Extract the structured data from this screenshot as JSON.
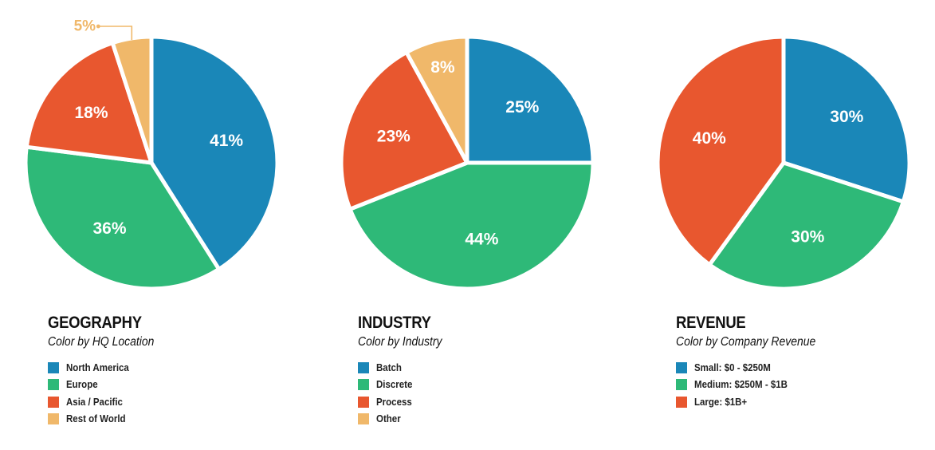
{
  "colors": {
    "blue": "#1a87b8",
    "green": "#2eb978",
    "red": "#e8572f",
    "orange": "#f0b86a"
  },
  "chart_data": [
    {
      "type": "pie",
      "title": "GEOGRAPHY",
      "subtitle": "Color by HQ Location",
      "slices": [
        {
          "name": "North America",
          "value": 41,
          "label": "41%",
          "color": "#1a87b8"
        },
        {
          "name": "Europe",
          "value": 36,
          "label": "36%",
          "color": "#2eb978"
        },
        {
          "name": "Asia / Pacific",
          "value": 18,
          "label": "18%",
          "color": "#e8572f"
        },
        {
          "name": "Rest of World",
          "value": 5,
          "label": "5%",
          "color": "#f0b86a",
          "callout": true
        }
      ],
      "start_angle": 0,
      "legend_position": "below"
    },
    {
      "type": "pie",
      "title": "INDUSTRY",
      "subtitle": "Color by Industry",
      "slices": [
        {
          "name": "Batch",
          "value": 25,
          "label": "25%",
          "color": "#1a87b8"
        },
        {
          "name": "Discrete",
          "value": 44,
          "label": "44%",
          "color": "#2eb978"
        },
        {
          "name": "Process",
          "value": 23,
          "label": "23%",
          "color": "#e8572f"
        },
        {
          "name": "Other",
          "value": 8,
          "label": "8%",
          "color": "#f0b86a"
        }
      ],
      "start_angle": 0,
      "legend_position": "below"
    },
    {
      "type": "pie",
      "title": "REVENUE",
      "subtitle": "Color by Company Revenue",
      "slices": [
        {
          "name": "Small: $0 - $250M",
          "value": 30,
          "label": "30%",
          "color": "#1a87b8"
        },
        {
          "name": "Medium: $250M - $1B",
          "value": 30,
          "label": "30%",
          "color": "#2eb978"
        },
        {
          "name": "Large: $1B+",
          "value": 40,
          "label": "40%",
          "color": "#e8572f"
        }
      ],
      "start_angle": 0,
      "legend_position": "below"
    }
  ]
}
